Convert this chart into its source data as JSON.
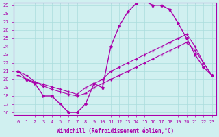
{
  "xlabel": "Windchill (Refroidissement éolien,°C)",
  "bg_color": "#d0f0f0",
  "line_color": "#aa00aa",
  "xlim": [
    0,
    23
  ],
  "ylim": [
    16,
    29
  ],
  "xticks": [
    0,
    1,
    2,
    3,
    4,
    5,
    6,
    7,
    8,
    9,
    10,
    11,
    12,
    13,
    14,
    15,
    16,
    17,
    18,
    19,
    20,
    21,
    22,
    23
  ],
  "yticks": [
    16,
    17,
    18,
    19,
    20,
    21,
    22,
    23,
    24,
    25,
    26,
    27,
    28,
    29
  ],
  "curve1_x": [
    0,
    1,
    2,
    3,
    4,
    5,
    6,
    7,
    8,
    9,
    10,
    11,
    12,
    13,
    14,
    15,
    16,
    17,
    18,
    19,
    20,
    21,
    22,
    23
  ],
  "curve1_y": [
    21.0,
    20.0,
    19.5,
    18.0,
    18.0,
    17.0,
    16.0,
    16.0,
    17.0,
    19.5,
    19.0,
    24.0,
    26.5,
    28.2,
    29.2,
    29.5,
    29.0,
    29.0,
    28.5,
    26.8,
    25.0,
    23.0,
    21.5,
    20.5
  ],
  "curve2_x": [
    0,
    1,
    2,
    3,
    4,
    5,
    6,
    7,
    8,
    9,
    10,
    11,
    12,
    13,
    14,
    15,
    16,
    17,
    18,
    19,
    20,
    21,
    22,
    23
  ],
  "curve2_y": [
    20.5,
    20.0,
    19.7,
    19.4,
    19.1,
    18.8,
    18.5,
    18.2,
    19.0,
    19.5,
    20.0,
    21.0,
    21.5,
    22.0,
    22.5,
    23.0,
    23.5,
    24.0,
    24.5,
    25.0,
    25.5,
    24.0,
    22.0,
    20.5
  ],
  "curve3_x": [
    0,
    1,
    2,
    3,
    4,
    5,
    6,
    7,
    8,
    9,
    10,
    11,
    12,
    13,
    14,
    15,
    16,
    17,
    18,
    19,
    20,
    21,
    22,
    23
  ],
  "curve3_y": [
    21.0,
    20.5,
    19.7,
    19.2,
    18.8,
    18.5,
    18.2,
    18.0,
    18.3,
    19.0,
    19.5,
    20.0,
    20.5,
    21.0,
    21.5,
    22.0,
    22.5,
    23.0,
    23.5,
    24.0,
    24.5,
    23.5,
    22.0,
    20.5
  ]
}
